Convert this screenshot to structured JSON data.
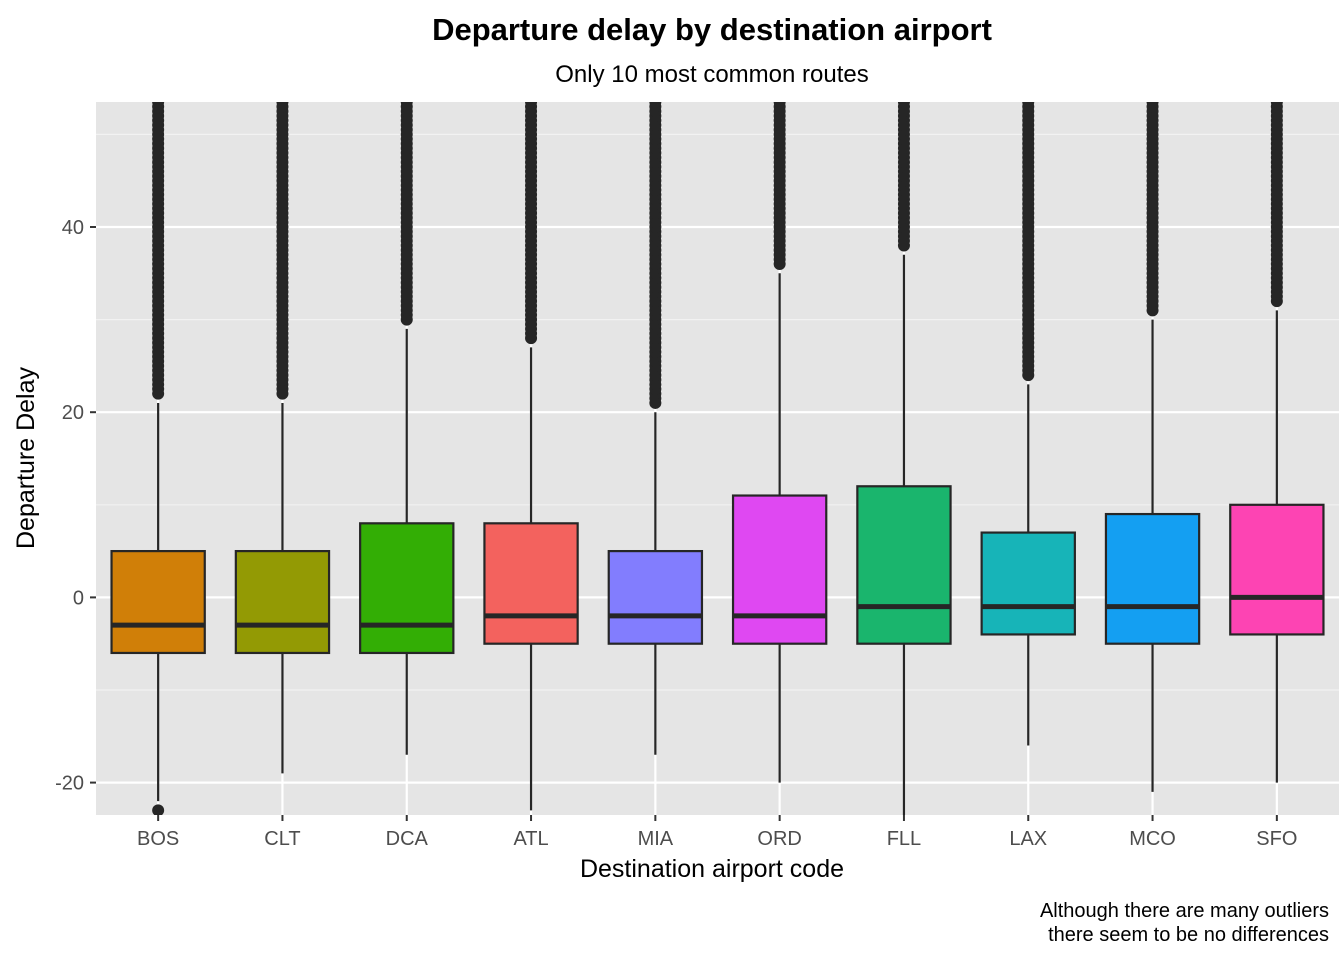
{
  "chart_data": {
    "type": "box",
    "title": "Departure delay by destination airport",
    "subtitle": "Only 10 most common routes",
    "xlabel": "Destination airport code",
    "ylabel": "Departure Delay",
    "caption_lines": [
      "Although there are many outliers",
      "there seem to be no differences"
    ],
    "ylim": [
      -23.5,
      53.5
    ],
    "yticks": [
      -20,
      0,
      20,
      40
    ],
    "ytick_labels": [
      "-20",
      "0",
      "20",
      "40"
    ],
    "grid": true,
    "legend": "none",
    "background": "#e5e5e5",
    "categories": [
      "BOS",
      "CLT",
      "DCA",
      "ATL",
      "MIA",
      "ORD",
      "FLL",
      "LAX",
      "MCO",
      "SFO"
    ],
    "boxes": [
      {
        "category": "BOS",
        "color": "#d07f08",
        "q1": -6,
        "median": -3,
        "q3": 5,
        "whisker_low": -22,
        "whisker_high": 21,
        "outliers_low": [
          -23
        ],
        "outliers_high_from": 22
      },
      {
        "category": "CLT",
        "color": "#939a04",
        "q1": -6,
        "median": -3,
        "q3": 5,
        "whisker_low": -19,
        "whisker_high": 21,
        "outliers_low": [],
        "outliers_high_from": 22
      },
      {
        "category": "DCA",
        "color": "#33ae05",
        "q1": -6,
        "median": -3,
        "q3": 8,
        "whisker_low": -17,
        "whisker_high": 29,
        "outliers_low": [],
        "outliers_high_from": 30
      },
      {
        "category": "ATL",
        "color": "#f3625e",
        "q1": -5,
        "median": -2,
        "q3": 8,
        "whisker_low": -23,
        "whisker_high": 27,
        "outliers_low": [],
        "outliers_high_from": 28
      },
      {
        "category": "MIA",
        "color": "#827dfe",
        "q1": -5,
        "median": -2,
        "q3": 5,
        "whisker_low": -17,
        "whisker_high": 20,
        "outliers_low": [],
        "outliers_high_from": 21
      },
      {
        "category": "ORD",
        "color": "#df48f2",
        "q1": -5,
        "median": -2,
        "q3": 11,
        "whisker_low": -20,
        "whisker_high": 35,
        "outliers_low": [],
        "outliers_high_from": 36
      },
      {
        "category": "FLL",
        "color": "#1ab56d",
        "q1": -5,
        "median": -1,
        "q3": 12,
        "whisker_low": -24,
        "whisker_high": 37,
        "outliers_low": [],
        "outliers_high_from": 38
      },
      {
        "category": "LAX",
        "color": "#17b4b8",
        "q1": -4,
        "median": -1,
        "q3": 7,
        "whisker_low": -16,
        "whisker_high": 23,
        "outliers_low": [],
        "outliers_high_from": 24
      },
      {
        "category": "MCO",
        "color": "#149ff2",
        "q1": -5,
        "median": -1,
        "q3": 9,
        "whisker_low": -21,
        "whisker_high": 30,
        "outliers_low": [],
        "outliers_high_from": 31
      },
      {
        "category": "SFO",
        "color": "#fd44b3",
        "q1": -4,
        "median": 0,
        "q3": 10,
        "whisker_low": -20,
        "whisker_high": 31,
        "outliers_low": [],
        "outliers_high_from": 32
      }
    ]
  }
}
